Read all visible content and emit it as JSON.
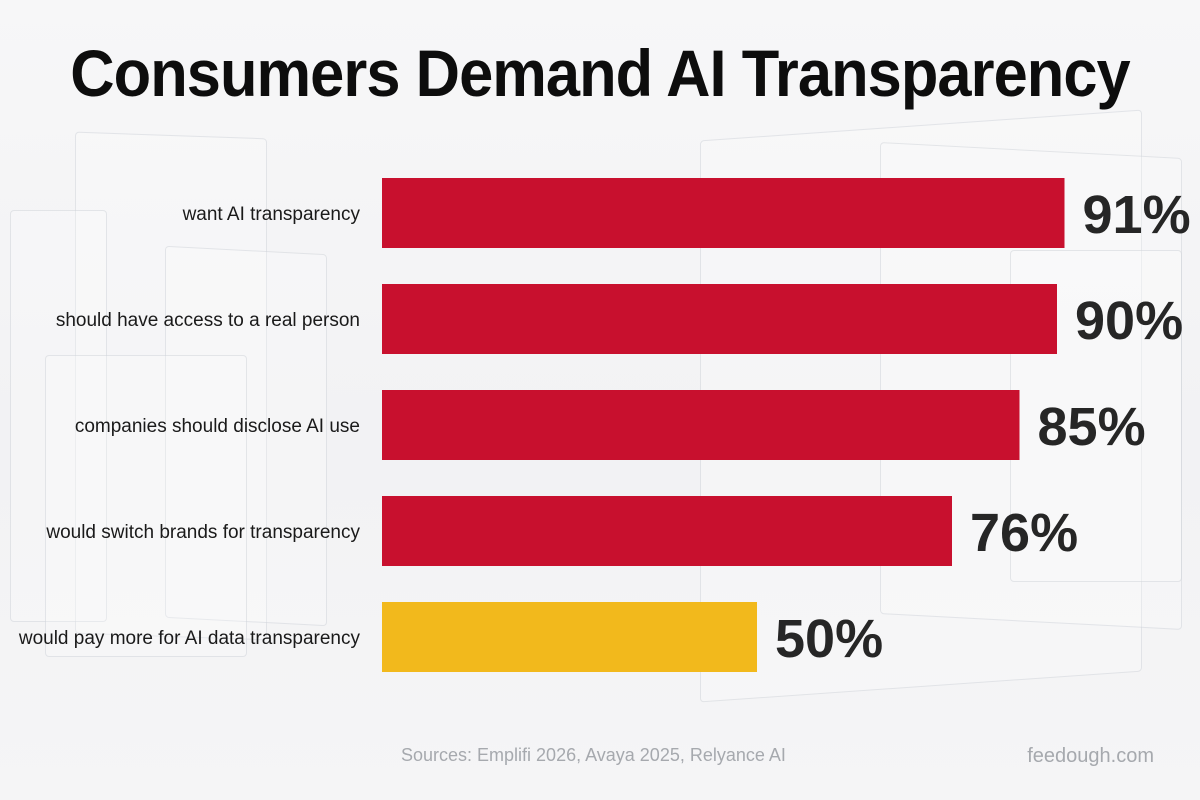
{
  "title": "Consumers Demand AI Transparency",
  "chart_data": {
    "type": "bar",
    "orientation": "horizontal",
    "categories": [
      "want AI transparency",
      "should have access to a real person",
      "companies should disclose AI use",
      "would switch brands for transparency",
      "would pay more for AI data transparency"
    ],
    "values": [
      91,
      90,
      85,
      76,
      50
    ],
    "value_labels": [
      "91%",
      "90%",
      "85%",
      "76%",
      "50%"
    ],
    "unit": "%",
    "xlim": [
      0,
      100
    ],
    "grid": false,
    "legend": "none",
    "colors": [
      "#c8102e",
      "#c8102e",
      "#c8102e",
      "#c8102e",
      "#f2b91c"
    ]
  },
  "footer": {
    "sources": "Sources: Emplifi 2026, Avaya 2025, Relyance AI",
    "site": "feedough.com"
  }
}
